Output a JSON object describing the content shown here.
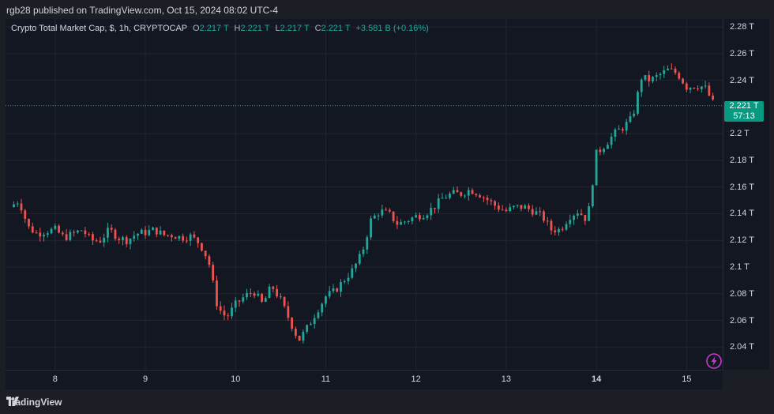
{
  "topbar": {
    "text": "rgb28 published on TradingView.com, Oct 15, 2024 08:02 UTC-4"
  },
  "legend": {
    "title": "Crypto Total Market Cap, $, 1h, CRYPTOCAP",
    "o_label": "O",
    "o_value": "2.217 T",
    "h_label": "H",
    "h_value": "2.221 T",
    "l_label": "L",
    "l_value": "2.217 T",
    "c_label": "C",
    "c_value": "2.221 T",
    "change": "+3.581 B (+0.16%)"
  },
  "price_tag": {
    "value": "2.221 T",
    "countdown": "57:13"
  },
  "footer": {
    "brand": "TradingView"
  },
  "colors": {
    "up": "#26a69a",
    "down": "#ef5350",
    "background": "#131722",
    "grid": "#22262f"
  },
  "chart_data": {
    "type": "candlestick",
    "y_axis": {
      "ticks": [
        "2.28 T",
        "2.26 T",
        "2.24 T",
        "2.2 T",
        "2.18 T",
        "2.16 T",
        "2.14 T",
        "2.12 T",
        "2.1 T",
        "2.08 T",
        "2.06 T",
        "2.04 T"
      ],
      "tick_values": [
        2.28,
        2.26,
        2.24,
        2.2,
        2.18,
        2.16,
        2.14,
        2.12,
        2.1,
        2.08,
        2.06,
        2.04
      ],
      "range": [
        2.023,
        2.286
      ],
      "unit": "T"
    },
    "x_axis": {
      "ticks": [
        "8",
        "9",
        "10",
        "11",
        "12",
        "13",
        "14",
        "15"
      ],
      "range": [
        7.45,
        15.4
      ],
      "bold_tick": "14"
    },
    "last_price": 2.221,
    "close_path": [
      [
        7.5,
        2.145
      ],
      [
        7.6,
        2.15
      ],
      [
        7.7,
        2.13
      ],
      [
        7.8,
        2.125
      ],
      [
        7.9,
        2.127
      ],
      [
        8.0,
        2.128
      ],
      [
        8.1,
        2.122
      ],
      [
        8.2,
        2.125
      ],
      [
        8.3,
        2.128
      ],
      [
        8.4,
        2.12
      ],
      [
        8.5,
        2.12
      ],
      [
        8.6,
        2.128
      ],
      [
        8.7,
        2.122
      ],
      [
        8.8,
        2.12
      ],
      [
        8.9,
        2.125
      ],
      [
        9.0,
        2.126
      ],
      [
        9.1,
        2.128
      ],
      [
        9.2,
        2.124
      ],
      [
        9.3,
        2.124
      ],
      [
        9.4,
        2.122
      ],
      [
        9.5,
        2.123
      ],
      [
        9.6,
        2.118
      ],
      [
        9.7,
        2.105
      ],
      [
        9.8,
        2.07
      ],
      [
        9.9,
        2.062
      ],
      [
        10.0,
        2.072
      ],
      [
        10.1,
        2.078
      ],
      [
        10.2,
        2.082
      ],
      [
        10.3,
        2.072
      ],
      [
        10.4,
        2.086
      ],
      [
        10.5,
        2.075
      ],
      [
        10.6,
        2.06
      ],
      [
        10.7,
        2.045
      ],
      [
        10.8,
        2.055
      ],
      [
        10.9,
        2.067
      ],
      [
        11.0,
        2.078
      ],
      [
        11.1,
        2.082
      ],
      [
        11.2,
        2.09
      ],
      [
        11.3,
        2.098
      ],
      [
        11.4,
        2.11
      ],
      [
        11.5,
        2.135
      ],
      [
        11.6,
        2.142
      ],
      [
        11.7,
        2.14
      ],
      [
        11.8,
        2.132
      ],
      [
        11.9,
        2.135
      ],
      [
        12.0,
        2.138
      ],
      [
        12.1,
        2.14
      ],
      [
        12.2,
        2.145
      ],
      [
        12.3,
        2.152
      ],
      [
        12.4,
        2.155
      ],
      [
        12.5,
        2.155
      ],
      [
        12.6,
        2.158
      ],
      [
        12.7,
        2.155
      ],
      [
        12.8,
        2.15
      ],
      [
        12.9,
        2.145
      ],
      [
        13.0,
        2.142
      ],
      [
        13.1,
        2.145
      ],
      [
        13.2,
        2.145
      ],
      [
        13.3,
        2.142
      ],
      [
        13.4,
        2.138
      ],
      [
        13.5,
        2.128
      ],
      [
        13.6,
        2.128
      ],
      [
        13.7,
        2.138
      ],
      [
        13.8,
        2.142
      ],
      [
        13.9,
        2.135
      ],
      [
        14.0,
        2.185
      ],
      [
        14.1,
        2.192
      ],
      [
        14.2,
        2.2
      ],
      [
        14.3,
        2.205
      ],
      [
        14.4,
        2.212
      ],
      [
        14.5,
        2.242
      ],
      [
        14.6,
        2.24
      ],
      [
        14.7,
        2.244
      ],
      [
        14.8,
        2.248
      ],
      [
        14.9,
        2.245
      ],
      [
        15.0,
        2.235
      ],
      [
        15.1,
        2.236
      ],
      [
        15.2,
        2.235
      ],
      [
        15.3,
        2.222
      ],
      [
        15.33,
        2.221
      ]
    ]
  }
}
